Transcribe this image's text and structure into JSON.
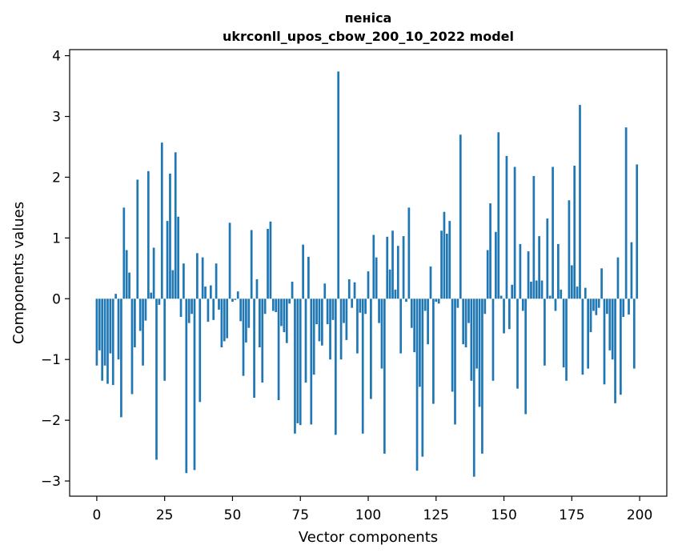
{
  "chart_data": {
    "type": "bar",
    "title_line1": "пеніса",
    "title_line2": "ukrconll_upos_cbow_200_10_2022 model",
    "xlabel": "Vector components",
    "ylabel": "Components values",
    "xlim": [
      -10,
      210
    ],
    "ylim": [
      -3.25,
      4.1
    ],
    "xticks": [
      0,
      25,
      50,
      75,
      100,
      125,
      150,
      175,
      200
    ],
    "yticks": [
      -3,
      -2,
      -1,
      0,
      1,
      2,
      3,
      4
    ],
    "ytick_labels": [
      "−3",
      "−2",
      "−1",
      "0",
      "1",
      "2",
      "3",
      "4"
    ],
    "grid": false,
    "bar_color": "#1f77b4",
    "values": [
      -1.1,
      -0.85,
      -1.35,
      -1.1,
      -1.4,
      -0.9,
      -1.42,
      0.08,
      -1.0,
      -1.95,
      1.5,
      0.8,
      0.43,
      -1.57,
      -0.8,
      1.96,
      -0.53,
      -1.1,
      -0.36,
      2.1,
      0.1,
      0.84,
      -2.65,
      -0.1,
      2.57,
      -1.35,
      1.28,
      2.06,
      0.47,
      2.41,
      1.35,
      -0.3,
      0.58,
      -2.87,
      -0.4,
      -0.25,
      -2.82,
      0.75,
      -1.7,
      0.68,
      0.2,
      -0.38,
      0.22,
      -0.35,
      0.58,
      -0.18,
      -0.8,
      -0.7,
      -0.65,
      1.25,
      -0.05,
      -0.02,
      0.12,
      -0.37,
      -1.27,
      -0.72,
      -0.48,
      1.13,
      -1.63,
      0.32,
      -0.8,
      -1.38,
      -0.25,
      1.15,
      1.27,
      -0.2,
      -0.22,
      -1.67,
      -0.45,
      -0.55,
      -0.73,
      -0.08,
      0.28,
      -2.22,
      -2.05,
      -2.08,
      0.89,
      -1.38,
      0.69,
      -2.07,
      -1.25,
      -0.42,
      -0.7,
      -0.77,
      0.25,
      -0.42,
      -1.0,
      -0.35,
      -2.24,
      3.74,
      -1.0,
      -0.4,
      -0.68,
      0.32,
      -0.15,
      0.27,
      -0.9,
      -0.23,
      -2.22,
      -0.25,
      0.45,
      -1.65,
      1.05,
      0.68,
      -0.4,
      -1.15,
      -2.55,
      1.02,
      0.48,
      1.12,
      0.15,
      0.87,
      -0.9,
      1.03,
      -0.05,
      1.5,
      -0.48,
      -0.88,
      -2.83,
      -1.45,
      -2.6,
      -0.2,
      -0.75,
      0.53,
      -1.73,
      -0.05,
      -0.08,
      1.12,
      1.43,
      1.07,
      1.28,
      -1.53,
      -2.07,
      -0.15,
      2.7,
      -0.75,
      -0.8,
      -0.4,
      -1.35,
      -2.93,
      -1.15,
      -1.78,
      -2.55,
      -0.25,
      0.8,
      1.57,
      -1.35,
      1.1,
      2.74,
      0.05,
      -0.57,
      2.35,
      -0.5,
      0.23,
      2.17,
      -1.48,
      0.9,
      -0.2,
      -1.9,
      0.78,
      0.28,
      2.02,
      0.3,
      1.03,
      0.3,
      -1.1,
      1.32,
      0.05,
      2.17,
      -0.2,
      0.9,
      0.15,
      -1.13,
      -1.35,
      1.62,
      0.55,
      2.19,
      0.2,
      3.19,
      -1.25,
      0.18,
      -1.15,
      -0.55,
      -0.2,
      -0.27,
      -0.15,
      0.5,
      -1.41,
      -0.25,
      -0.85,
      -1.0,
      -1.72,
      0.68,
      -1.58,
      -0.3,
      2.82,
      -0.26,
      0.93,
      -1.15,
      2.21
    ]
  }
}
